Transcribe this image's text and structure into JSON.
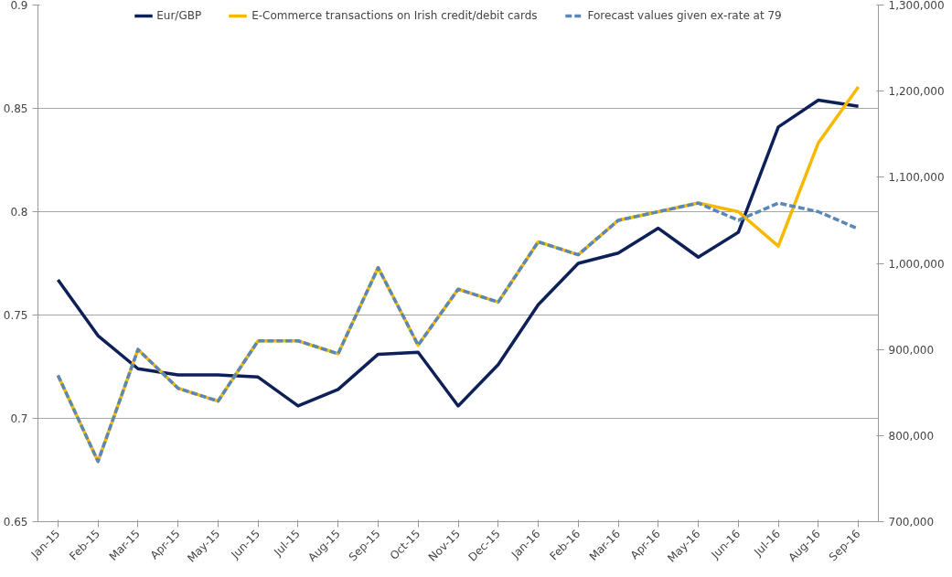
{
  "chart_data": {
    "type": "line",
    "categories": [
      "Jan-15",
      "Feb-15",
      "Mar-15",
      "Apr-15",
      "May-15",
      "Jun-15",
      "Jul-15",
      "Aug-15",
      "Sep-15",
      "Oct-15",
      "Nov-15",
      "Dec-15",
      "Jan-16",
      "Feb-16",
      "Mar-16",
      "Apr-16",
      "May-16",
      "Jun-16",
      "Jul-16",
      "Aug-16",
      "Sep-16"
    ],
    "series": [
      {
        "name": "Eur/GBP",
        "color": "#0d2158",
        "line_style": "solid",
        "values": [
          0.767,
          0.74,
          0.724,
          0.721,
          0.721,
          0.72,
          0.706,
          0.714,
          0.731,
          0.732,
          0.706,
          0.726,
          0.755,
          0.775,
          0.78,
          0.792,
          0.778,
          0.79,
          0.841,
          0.854,
          0.851
        ]
      },
      {
        "name": "E-Commerce transactions on Irish credit/debit cards",
        "color": "#f7b900",
        "axis": "y2",
        "line_style": "solid",
        "values": [
          870000,
          770000,
          900000,
          855000,
          840000,
          910000,
          910000,
          895000,
          995000,
          905000,
          970000,
          955000,
          1025000,
          1010000,
          1050000,
          1060000,
          1070000,
          1060000,
          1020000,
          1140000,
          1205000
        ]
      },
      {
        "name": "Forecast values given ex-rate at 79",
        "color": "#5a87b9",
        "axis": "y2",
        "line_style": "dashed",
        "values": [
          870000,
          770000,
          900000,
          855000,
          840000,
          910000,
          910000,
          895000,
          995000,
          905000,
          970000,
          955000,
          1025000,
          1010000,
          1050000,
          1060000,
          1070000,
          1050000,
          1070000,
          1060000,
          1040000
        ]
      }
    ],
    "ylim": [
      0.65,
      0.9
    ],
    "yticks": [
      0.65,
      0.7,
      0.75,
      0.8,
      0.85,
      0.9
    ],
    "y2lim": [
      700000,
      1300000
    ],
    "y2ticks": [
      {
        "value": 700000,
        "label": "700,000"
      },
      {
        "value": 800000,
        "label": "800,000"
      },
      {
        "value": 900000,
        "label": "900,000"
      },
      {
        "value": 1000000,
        "label": "1,000,000"
      },
      {
        "value": 1100000,
        "label": "1,100,000"
      },
      {
        "value": 1200000,
        "label": "1,200,000"
      },
      {
        "value": 1300000,
        "label": "1,300,000"
      }
    ],
    "grid": "y",
    "legend": "top"
  }
}
